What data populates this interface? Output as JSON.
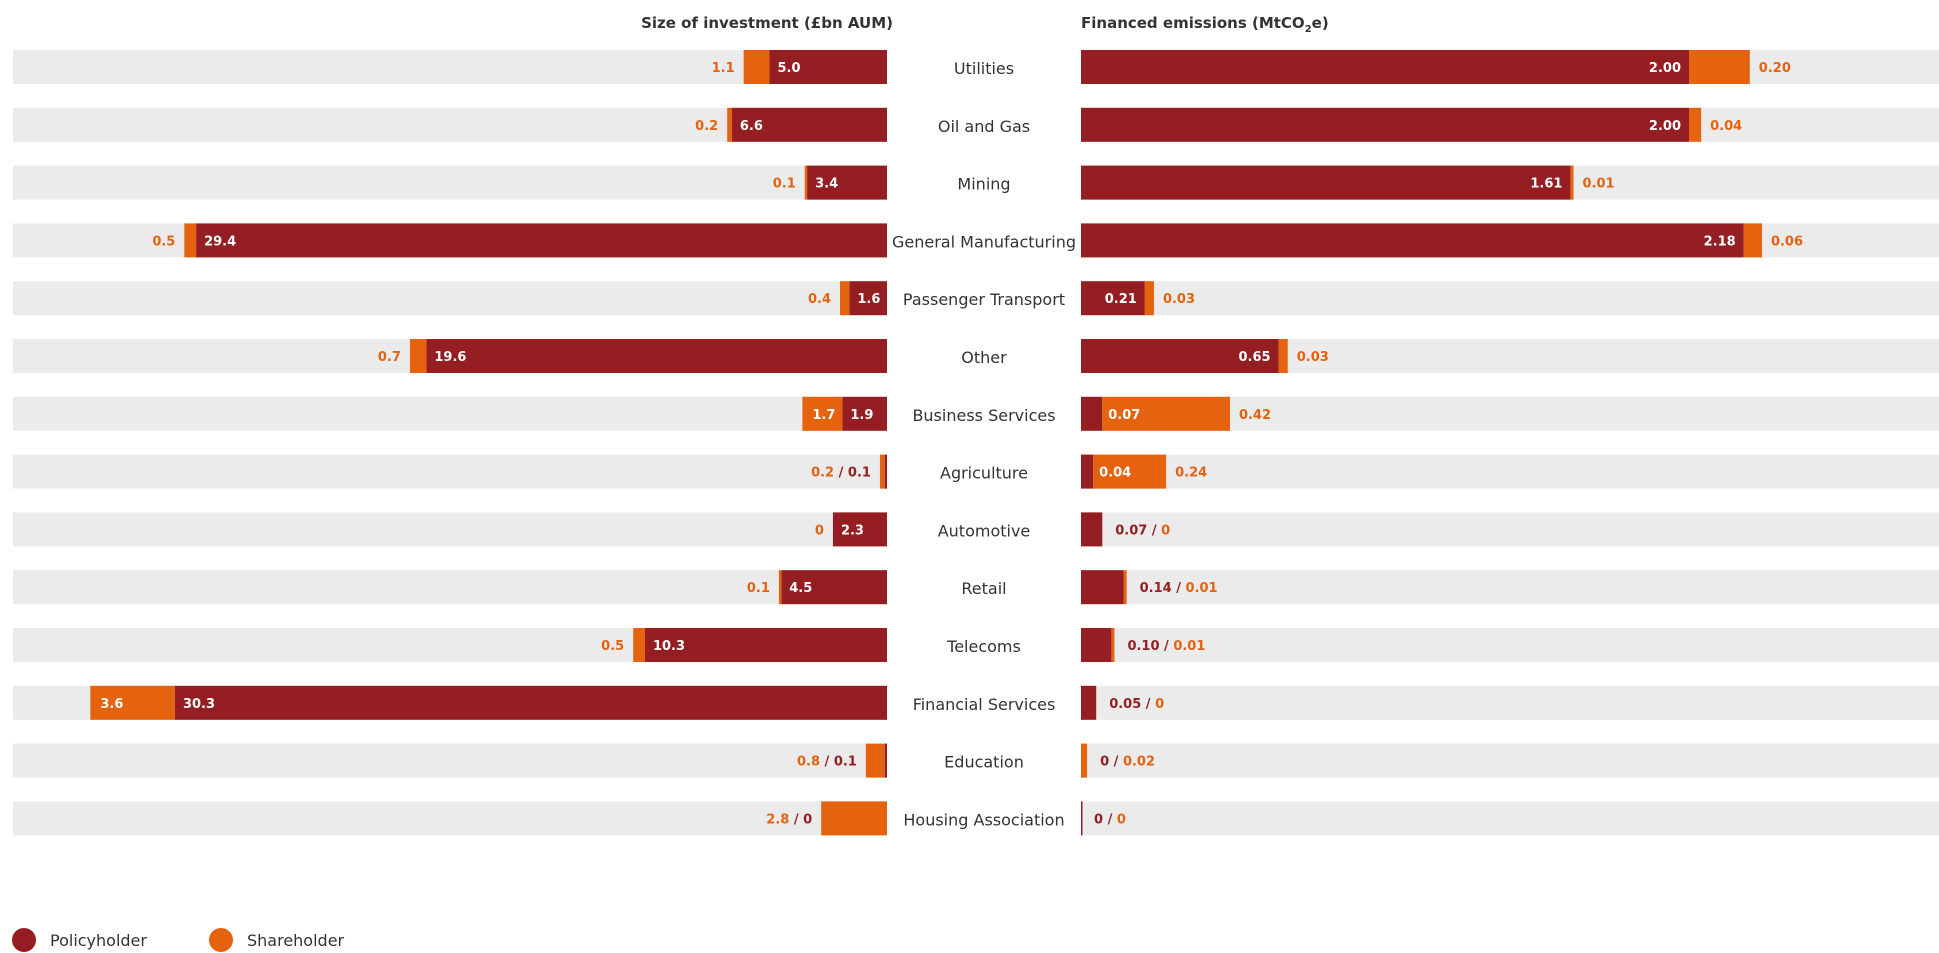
{
  "colors": {
    "policyholder": "#941e22",
    "shareholder": "#e5620f",
    "track": "#ebebeb",
    "text": "#333333",
    "white": "#ffffff"
  },
  "legend": [
    {
      "name": "Policyholder",
      "color": "#941e22"
    },
    {
      "name": "Shareholder",
      "color": "#e5620f"
    }
  ],
  "chart_data": [
    {
      "type": "bar",
      "orientation": "horizontal",
      "stacked": true,
      "title": "Size of investment (£bn AUM)",
      "xlim": [
        0,
        35
      ],
      "categories": [
        "Utilities",
        "Oil and Gas",
        "Mining",
        "General Manufacturing",
        "Passenger Transport",
        "Other",
        "Business Services",
        "Agriculture",
        "Automotive",
        "Retail",
        "Telecoms",
        "Financial Services",
        "Education",
        "Housing Association"
      ],
      "series": [
        {
          "name": "Policyholder",
          "values": [
            5.0,
            6.6,
            3.4,
            29.4,
            1.6,
            19.6,
            1.9,
            0.1,
            2.3,
            4.5,
            10.3,
            30.3,
            0.1,
            0
          ]
        },
        {
          "name": "Shareholder",
          "values": [
            1.1,
            0.2,
            0.1,
            0.5,
            0.4,
            0.7,
            1.7,
            0.2,
            0,
            0.1,
            0.5,
            3.6,
            0.8,
            2.8
          ]
        }
      ],
      "data_labels": {
        "policyholder": [
          "5.0",
          "6.6",
          "3.4",
          "29.4",
          "1.6",
          "19.6",
          "1.9",
          "0.1",
          "2.3",
          "4.5",
          "10.3",
          "30.3",
          "0.1",
          "0"
        ],
        "shareholder": [
          "1.1",
          "0.2",
          "0.1",
          "0.5",
          "0.4",
          "0.7",
          "1.7",
          "0.2",
          "0",
          "0.1",
          "0.5",
          "3.6",
          "0.8",
          "2.8"
        ]
      }
    },
    {
      "type": "bar",
      "orientation": "horizontal",
      "stacked": true,
      "title_main": "Financed emissions (MtCO",
      "title_sub": "2",
      "title_end": "e)",
      "xlim": [
        0,
        2.5
      ],
      "categories": [
        "Utilities",
        "Oil and Gas",
        "Mining",
        "General Manufacturing",
        "Passenger Transport",
        "Other",
        "Business Services",
        "Agriculture",
        "Automotive",
        "Retail",
        "Telecoms",
        "Financial Services",
        "Education",
        "Housing Association"
      ],
      "series": [
        {
          "name": "Policyholder",
          "values": [
            2.0,
            2.0,
            1.61,
            2.18,
            0.21,
            0.65,
            0.07,
            0.04,
            0.07,
            0.14,
            0.1,
            0.05,
            0,
            0
          ]
        },
        {
          "name": "Shareholder",
          "values": [
            0.2,
            0.04,
            0.01,
            0.06,
            0.03,
            0.03,
            0.42,
            0.24,
            0,
            0.01,
            0.01,
            0,
            0.02,
            0
          ]
        }
      ],
      "data_labels": {
        "policyholder": [
          "2.00",
          "2.00",
          "1.61",
          "2.18",
          "0.21",
          "0.65",
          "0.07",
          "0.04",
          "0.07",
          "0.14",
          "0.10",
          "0.05",
          "0",
          "0"
        ],
        "shareholder": [
          "0.20",
          "0.04",
          "0.01",
          "0.06",
          "0.03",
          "0.03",
          "0.42",
          "0.24",
          "0",
          "0.01",
          "0.01",
          "0",
          "0.02",
          "0"
        ]
      }
    }
  ]
}
